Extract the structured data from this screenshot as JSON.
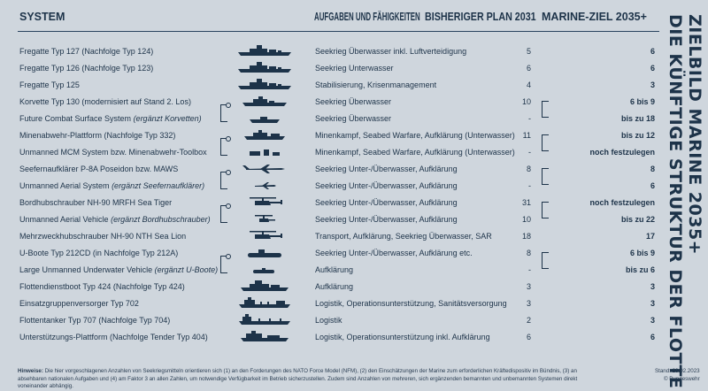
{
  "header": {
    "system": "SYSTEM",
    "tasks": "AUFGABEN UND FÄHIGKEITEN",
    "plan": "BISHERIGER PLAN 2031",
    "target": "MARINE-ZIEL 2035+"
  },
  "side_title": {
    "line1": "ZIELBILD MARINE 2035+",
    "line2": "DIE KÜNFTIGE STRUKTUR DER FLOTTE"
  },
  "rows": [
    {
      "name": "Fregatte Typ 127 (Nachfolge Typ 124)",
      "note": "",
      "icon": "frigate-icon",
      "task": "Seekrieg Überwasser inkl. Luftverteidigung",
      "plan": "5",
      "target": "6"
    },
    {
      "name": "Fregatte Typ 126 (Nachfolge Typ 123)",
      "note": "",
      "icon": "frigate-icon",
      "task": "Seekrieg Unterwasser",
      "plan": "6",
      "target": "6"
    },
    {
      "name": "Fregatte Typ 125",
      "note": "",
      "icon": "frigate-icon",
      "task": "Stabilisierung, Krisenmanagement",
      "plan": "4",
      "target": "3"
    },
    {
      "name": "Korvette Typ 130 (modernisiert auf Stand 2. Los)",
      "note": "",
      "icon": "corvette-icon",
      "task": "Seekrieg Überwasser",
      "plan": "10",
      "target": "6 bis 9"
    },
    {
      "name": "Future Combat Surface System ",
      "note": "(ergänzt Korvetten)",
      "icon": "unmanned-boat-icon",
      "task": "Seekrieg Überwasser",
      "plan": "-",
      "target": "bis zu 18"
    },
    {
      "name": "Minenabwehr-Plattform (Nachfolge Typ 332)",
      "note": "",
      "icon": "minehunter-icon",
      "task": "Minenkampf, Seabed Warfare, Aufklärung (Unterwasser)",
      "plan": "11",
      "target": "bis zu 12"
    },
    {
      "name": "Unmanned MCM System bzw. Minenabwehr-Toolbox",
      "note": "",
      "icon": "drone-toolbox-icon",
      "task": "Minenkampf, Seabed Warfare, Aufklärung (Unterwasser)",
      "plan": "-",
      "target": "noch festzulegen"
    },
    {
      "name": "Seefernaufklärer P-8A Poseidon bzw. MAWS",
      "note": "",
      "icon": "maritime-patrol-aircraft-icon",
      "task": "Seekrieg Unter-/Überwasser, Aufklärung",
      "plan": "8",
      "target": "8"
    },
    {
      "name": "Unmanned Aerial System ",
      "note": "(ergänzt Seefernaufklärer)",
      "icon": "uav-icon",
      "task": "Seekrieg Unter-/Überwasser, Aufklärung",
      "plan": "-",
      "target": "6"
    },
    {
      "name": "Bordhubschrauber NH-90 MRFH Sea Tiger",
      "note": "",
      "icon": "helicopter-icon",
      "task": "Seekrieg Unter-/Überwasser, Aufklärung",
      "plan": "31",
      "target": "noch festzulegen"
    },
    {
      "name": "Unmanned Aerial Vehicle ",
      "note": "(ergänzt Bordhubschrauber)",
      "icon": "rotor-drone-icon",
      "task": "Seekrieg Unter-/Überwasser, Aufklärung",
      "plan": "10",
      "target": "bis zu 22"
    },
    {
      "name": "Mehrzweckhubschrauber NH-90 NTH Sea Lion",
      "note": "",
      "icon": "helicopter-icon",
      "task": "Transport, Aufklärung, Seekrieg Überwasser, SAR",
      "plan": "18",
      "target": "17"
    },
    {
      "name": "U-Boote Typ 212CD (in Nachfolge Typ 212A)",
      "note": "",
      "icon": "submarine-icon",
      "task": "Seekrieg Unter-/Überwasser, Aufklärung etc.",
      "plan": "8",
      "target": "6 bis 9"
    },
    {
      "name": "Large Unmanned Underwater Vehicle ",
      "note": "(ergänzt U-Boote)",
      "icon": "uuv-icon",
      "task": "Aufklärung",
      "plan": "-",
      "target": "bis zu 6"
    },
    {
      "name": "Flottendienstboot Typ 424 (Nachfolge Typ 424)",
      "note": "",
      "icon": "intelligence-ship-icon",
      "task": "Aufklärung",
      "plan": "3",
      "target": "3"
    },
    {
      "name": "Einsatzgruppenversorger Typ 702",
      "note": "",
      "icon": "supply-ship-icon",
      "task": "Logistik, Operationsunterstützung, Sanitätsversorgung",
      "plan": "3",
      "target": "3"
    },
    {
      "name": "Flottentanker Typ 707 (Nachfolge Typ 704)",
      "note": "",
      "icon": "tanker-icon",
      "task": "Logistik",
      "plan": "2",
      "target": "3"
    },
    {
      "name": "Unterstützungs-Plattform (Nachfolge Tender Typ 404)",
      "note": "",
      "icon": "tender-icon",
      "task": "Logistik, Operationsunterstützung inkl. Aufklärung",
      "plan": "6",
      "target": "6"
    }
  ],
  "footer": {
    "label": "Hinweise:",
    "text": " Die hier vorgeschlagenen Anzahlen von Seekriegsmitteln orientieren sich (1) an den Forderungen des NATO Force Model (NFM), (2) den Einschätzungen der Marine zum erforderlichen Kräftedispositiv im Bündnis, (3) an absehbaren nationalen Aufgaben und (4) am Faktor 3 an allen Zahlen, um notwendige Verfügbarkeit im Betrieb sicherzustellen. Zudem sind Anzahlen von mehreren, sich ergänzenden bemannten und unbemannten Systemen direkt voneinander abhängig.",
    "stand": "Stand: 23.02.2023",
    "credit": "© Bundeswehr"
  },
  "colors": {
    "background": "#cfd6dd",
    "text": "#1d3349",
    "silhouette": "#1d3349"
  }
}
